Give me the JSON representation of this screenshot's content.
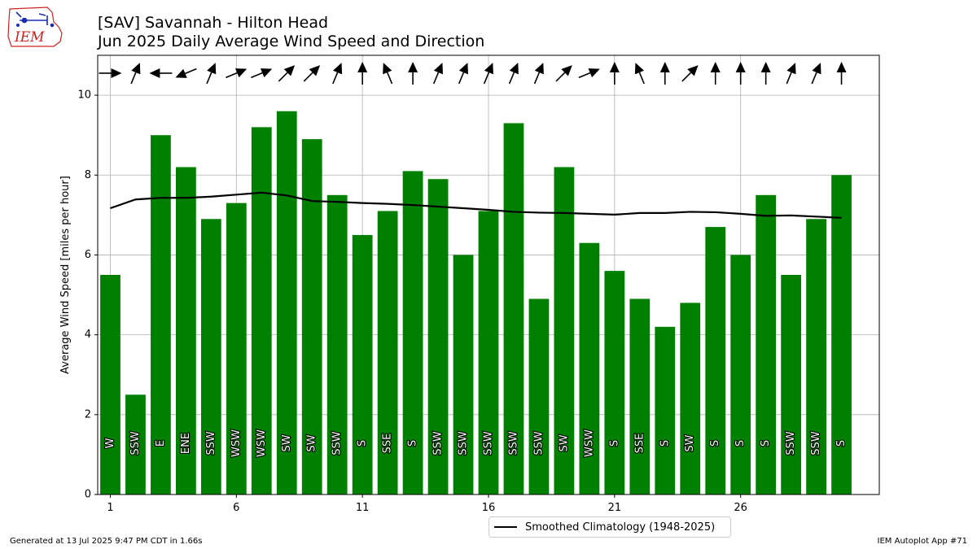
{
  "header": {
    "title_line1": "[SAV] Savannah - Hilton Head",
    "title_line2": "Jun 2025 Daily Average Wind Speed and Direction",
    "logo_text": "IEM"
  },
  "footer": {
    "generated": "Generated at 13 Jul 2025 9:47 PM CDT in 1.66s",
    "app": "IEM Autoplot App #71"
  },
  "colors": {
    "bar": "#008000",
    "climatology": "#000000",
    "grid": "#b0b0b0",
    "logo": "#cc2222"
  },
  "chart_data": {
    "type": "bar",
    "ylabel": "Average Wind Speed [miles per hour]",
    "xlabel": "",
    "ylim": [
      0,
      11
    ],
    "xlim": [
      0.5,
      31.5
    ],
    "yticks": [
      0,
      2,
      4,
      6,
      8,
      10
    ],
    "xticks": [
      1,
      6,
      11,
      16,
      21,
      26
    ],
    "grid": true,
    "legend_position": "bottom-center",
    "x": [
      1,
      2,
      3,
      4,
      5,
      6,
      7,
      8,
      9,
      10,
      11,
      12,
      13,
      14,
      15,
      16,
      17,
      18,
      19,
      20,
      21,
      22,
      23,
      24,
      25,
      26,
      27,
      28,
      29,
      30
    ],
    "series": [
      {
        "values": [
          5.5,
          2.5,
          9.0,
          8.2,
          6.9,
          7.3,
          9.2,
          9.6,
          8.9,
          7.5,
          6.5,
          7.1,
          8.1,
          7.9,
          6.0,
          7.1,
          9.3,
          4.9,
          8.2,
          6.3,
          5.6,
          4.9,
          4.2,
          4.8,
          6.7,
          6.0,
          7.5,
          5.5,
          6.9,
          8.0
        ]
      },
      {
        "name": "Smoothed Climatology (1948-2025)",
        "values": [
          7.17,
          7.39,
          7.43,
          7.43,
          7.46,
          7.51,
          7.56,
          7.49,
          7.35,
          7.33,
          7.3,
          7.28,
          7.25,
          7.21,
          7.17,
          7.13,
          7.08,
          7.06,
          7.05,
          7.03,
          7.01,
          7.05,
          7.05,
          7.08,
          7.07,
          7.03,
          6.98,
          6.99,
          6.96,
          6.93
        ]
      }
    ],
    "direction_labels": [
      "W",
      "SSW",
      "E",
      "ENE",
      "SSW",
      "WSW",
      "WSW",
      "SW",
      "SW",
      "SSW",
      "S",
      "SSE",
      "S",
      "SSW",
      "SSW",
      "SSW",
      "SSW",
      "SSW",
      "SW",
      "WSW",
      "S",
      "SSE",
      "S",
      "SW",
      "S",
      "S",
      "S",
      "SSW",
      "SSW",
      "S"
    ],
    "direction_degrees": [
      270,
      202.5,
      90,
      67.5,
      202.5,
      247.5,
      247.5,
      225,
      225,
      202.5,
      180,
      157.5,
      180,
      202.5,
      202.5,
      202.5,
      202.5,
      202.5,
      225,
      247.5,
      180,
      157.5,
      180,
      225,
      180,
      180,
      180,
      202.5,
      202.5,
      180
    ]
  }
}
